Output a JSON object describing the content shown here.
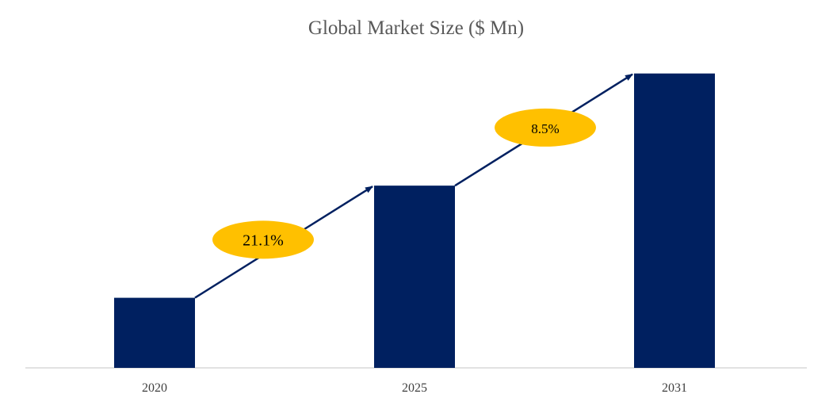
{
  "chart_data": {
    "type": "bar",
    "title": "Global Market Size ($ Mn)",
    "xlabel": "",
    "ylabel": "",
    "categories": [
      "2020",
      "2025",
      "2031"
    ],
    "values": [
      1.0,
      2.6,
      4.2
    ],
    "ylim": [
      0,
      4.4
    ],
    "grid": false,
    "bar_color": "#002060",
    "arrow_color": "#002060",
    "annotations": [
      {
        "text": "21.1%",
        "from": "2020",
        "to": "2025",
        "color": "#FFC000"
      },
      {
        "text": "8.5%",
        "from": "2025",
        "to": "2031",
        "color": "#FFC000"
      }
    ]
  }
}
